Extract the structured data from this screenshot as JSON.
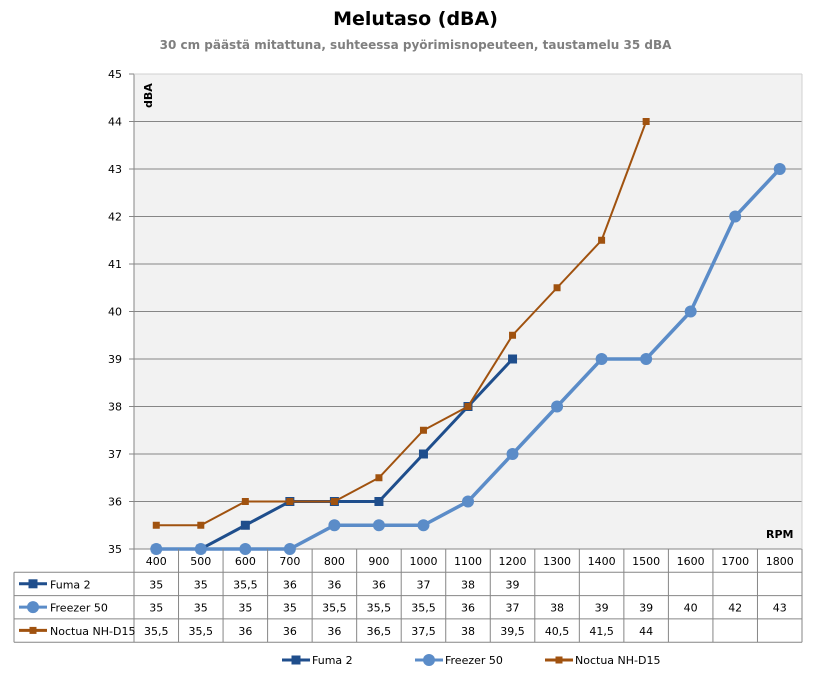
{
  "chart_data": {
    "type": "line",
    "title": "Melutaso (dBA)",
    "subtitle": "30 cm päästä mitattuna, suhteessa pyörimisnopeuteen, taustamelu 35 dBA",
    "xlabel": "RPM",
    "ylabel": "dBA",
    "ylim": [
      35,
      45
    ],
    "yticks": [
      "35",
      "36",
      "37",
      "38",
      "39",
      "40",
      "41",
      "42",
      "43",
      "44",
      "45"
    ],
    "grid": true,
    "legend": "bottom",
    "categories": [
      "400",
      "500",
      "600",
      "700",
      "800",
      "900",
      "1000",
      "1100",
      "1200",
      "1300",
      "1400",
      "1500",
      "1600",
      "1700",
      "1800"
    ],
    "series": [
      {
        "name": "Fuma 2",
        "color": "#1f4e8c",
        "marker": "square",
        "values": [
          35,
          35,
          35.5,
          36,
          36,
          36,
          37,
          38,
          39,
          null,
          null,
          null,
          null,
          null,
          null
        ],
        "labels": [
          "35",
          "35",
          "35,5",
          "36",
          "36",
          "36",
          "37",
          "38",
          "39",
          "",
          "",
          "",
          "",
          "",
          ""
        ]
      },
      {
        "name": "Freezer 50",
        "color": "#5b8cc8",
        "marker": "circle",
        "values": [
          35,
          35,
          35,
          35,
          35.5,
          35.5,
          35.5,
          36,
          37,
          38,
          39,
          39,
          40,
          42,
          43
        ],
        "labels": [
          "35",
          "35",
          "35",
          "35",
          "35,5",
          "35,5",
          "35,5",
          "36",
          "37",
          "38",
          "39",
          "39",
          "40",
          "42",
          "43"
        ]
      },
      {
        "name": "Noctua NH-D15",
        "color": "#a0520f",
        "marker": "square-small",
        "values": [
          35.5,
          35.5,
          36,
          36,
          36,
          36.5,
          37.5,
          38,
          39.5,
          40.5,
          41.5,
          44,
          null,
          null,
          null
        ],
        "labels": [
          "35,5",
          "35,5",
          "36",
          "36",
          "36",
          "36,5",
          "37,5",
          "38",
          "39,5",
          "40,5",
          "41,5",
          "44",
          "",
          "",
          ""
        ]
      }
    ]
  }
}
